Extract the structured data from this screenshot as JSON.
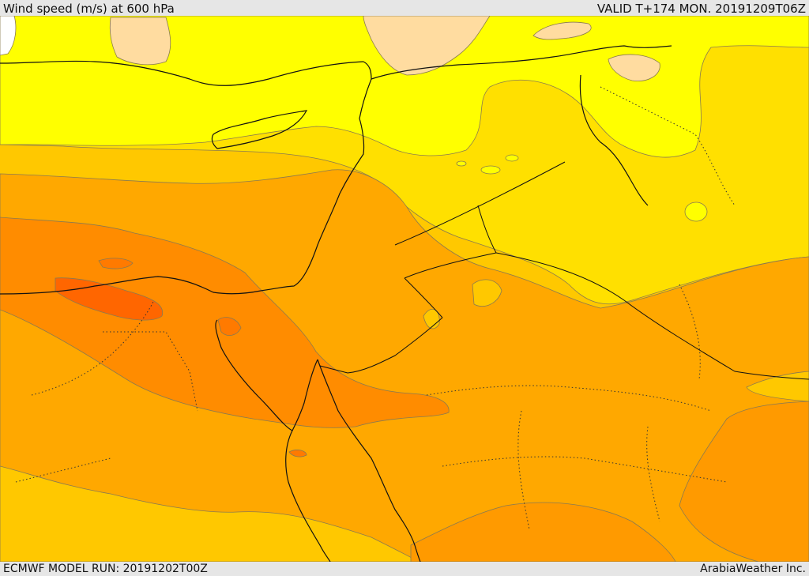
{
  "header": {
    "title": "Wind speed (m/s) at 600 hPa",
    "valid": "VALID T+174 MON. 20191209T06Z"
  },
  "footer": {
    "model_run": "ECMWF MODEL RUN: 20191202T00Z",
    "credit": "ArabiaWeather Inc."
  },
  "colors": {
    "band_yellow": "#ffff00",
    "band_light_orange_yellow": "#ffe000",
    "band_gold": "#ffc800",
    "band_amber": "#ffa800",
    "band_orange": "#ff8c00",
    "band_deep_orange": "#ff6600",
    "band_peach": "#ffdca0",
    "band_white": "#ffffff"
  }
}
